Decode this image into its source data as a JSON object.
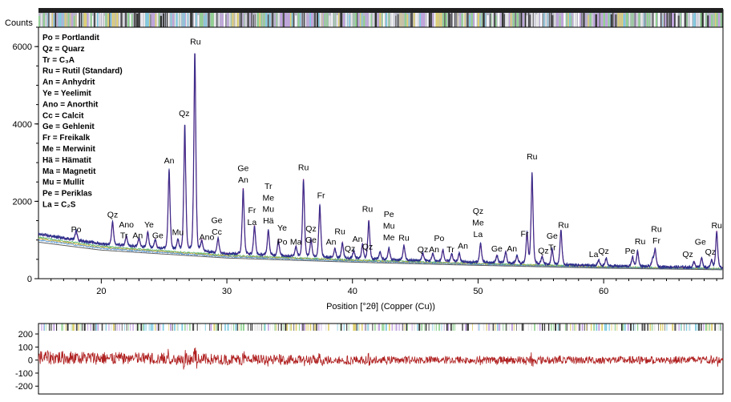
{
  "chart_data": [
    {
      "type": "line",
      "ylabel": "Counts",
      "xlabel": "Position [°2θ] (Copper (Cu))",
      "xlim": [
        15,
        69.5
      ],
      "ylim": [
        0,
        6500
      ],
      "x_ticks": [
        20,
        30,
        40,
        50,
        60
      ],
      "y_ticks": [
        0,
        2000,
        4000,
        6000
      ],
      "line_color": "#2a2f8a",
      "fit_color": "#7a2a8a",
      "legend_placement": "top-left",
      "legend": [
        "Po = Portlandit",
        "Qz = Quarz",
        "Tr = C₃A",
        "Ru = Rutil (Standard)",
        "An = Anhydrit",
        "Ye = Yeelimit",
        "Ano = Anorthit",
        "Cc = Calcit",
        "Ge = Gehlenit",
        "Fr = Freikalk",
        "Me = Merwinit",
        "Hä = Hämatit",
        "Ma = Magnetit",
        "Mu = Mullit",
        "Pe = Periklas",
        "La = C₂S"
      ],
      "baseline": {
        "x": [
          15,
          20,
          30,
          40,
          50,
          60,
          69.5
        ],
        "y": [
          1150,
          900,
          650,
          520,
          420,
          330,
          280
        ]
      },
      "peaks": [
        {
          "x": 18.0,
          "y": 250
        },
        {
          "x": 20.9,
          "y": 600
        },
        {
          "x": 22.0,
          "y": 250
        },
        {
          "x": 23.0,
          "y": 220
        },
        {
          "x": 23.7,
          "y": 400
        },
        {
          "x": 24.3,
          "y": 220
        },
        {
          "x": 25.4,
          "y": 2050
        },
        {
          "x": 26.1,
          "y": 250
        },
        {
          "x": 26.65,
          "y": 3250
        },
        {
          "x": 27.45,
          "y": 5150
        },
        {
          "x": 28.0,
          "y": 280
        },
        {
          "x": 29.3,
          "y": 380
        },
        {
          "x": 31.3,
          "y": 1700
        },
        {
          "x": 32.2,
          "y": 750
        },
        {
          "x": 33.3,
          "y": 650
        },
        {
          "x": 34.1,
          "y": 400
        },
        {
          "x": 35.5,
          "y": 250
        },
        {
          "x": 36.1,
          "y": 2000
        },
        {
          "x": 36.7,
          "y": 450
        },
        {
          "x": 37.4,
          "y": 1350
        },
        {
          "x": 38.6,
          "y": 250
        },
        {
          "x": 39.2,
          "y": 400
        },
        {
          "x": 40.1,
          "y": 200
        },
        {
          "x": 40.8,
          "y": 380
        },
        {
          "x": 41.3,
          "y": 1000
        },
        {
          "x": 42.2,
          "y": 200
        },
        {
          "x": 42.9,
          "y": 300
        },
        {
          "x": 44.1,
          "y": 380
        },
        {
          "x": 45.6,
          "y": 200
        },
        {
          "x": 46.4,
          "y": 200
        },
        {
          "x": 47.2,
          "y": 300
        },
        {
          "x": 47.9,
          "y": 200
        },
        {
          "x": 48.5,
          "y": 220
        },
        {
          "x": 50.2,
          "y": 500
        },
        {
          "x": 51.5,
          "y": 200
        },
        {
          "x": 52.2,
          "y": 300
        },
        {
          "x": 53.1,
          "y": 200
        },
        {
          "x": 53.9,
          "y": 800
        },
        {
          "x": 54.3,
          "y": 2350
        },
        {
          "x": 55.1,
          "y": 200
        },
        {
          "x": 55.9,
          "y": 400
        },
        {
          "x": 56.6,
          "y": 900
        },
        {
          "x": 59.6,
          "y": 150
        },
        {
          "x": 60.2,
          "y": 200
        },
        {
          "x": 62.3,
          "y": 250
        },
        {
          "x": 62.7,
          "y": 400
        },
        {
          "x": 63.9,
          "y": 200
        },
        {
          "x": 64.1,
          "y": 450
        },
        {
          "x": 67.2,
          "y": 150
        },
        {
          "x": 67.8,
          "y": 250
        },
        {
          "x": 68.6,
          "y": 200
        },
        {
          "x": 69.0,
          "y": 950
        }
      ],
      "peak_labels": [
        {
          "text": "Po",
          "x": 18.0,
          "y": 1200
        },
        {
          "text": "Qz",
          "x": 20.9,
          "y": 1580
        },
        {
          "text": "Ano",
          "x": 22.0,
          "y": 1330
        },
        {
          "text": "Tr",
          "x": 21.8,
          "y": 1050
        },
        {
          "text": "An",
          "x": 22.9,
          "y": 1050
        },
        {
          "text": "Ye",
          "x": 23.8,
          "y": 1330
        },
        {
          "text": "Ge",
          "x": 24.5,
          "y": 1050
        },
        {
          "text": "An",
          "x": 25.4,
          "y": 2980
        },
        {
          "text": "Mu",
          "x": 26.1,
          "y": 1130
        },
        {
          "text": "Qz",
          "x": 26.6,
          "y": 4200
        },
        {
          "text": "Ru",
          "x": 27.5,
          "y": 6050
        },
        {
          "text": "Ano",
          "x": 28.4,
          "y": 1000
        },
        {
          "text": "Ge",
          "x": 29.2,
          "y": 1440
        },
        {
          "text": "Cc",
          "x": 29.2,
          "y": 1140
        },
        {
          "text": "Ge",
          "x": 31.3,
          "y": 2780
        },
        {
          "text": "An",
          "x": 31.3,
          "y": 2480
        },
        {
          "text": "Fr",
          "x": 32.0,
          "y": 1700
        },
        {
          "text": "La",
          "x": 32.0,
          "y": 1390
        },
        {
          "text": "Tr",
          "x": 33.3,
          "y": 2320
        },
        {
          "text": "Me",
          "x": 33.3,
          "y": 2020
        },
        {
          "text": "Mu",
          "x": 33.3,
          "y": 1730
        },
        {
          "text": "Hä",
          "x": 33.3,
          "y": 1430
        },
        {
          "text": "Ye",
          "x": 34.4,
          "y": 1240
        },
        {
          "text": "Po",
          "x": 34.4,
          "y": 880
        },
        {
          "text": "Ma",
          "x": 35.5,
          "y": 880
        },
        {
          "text": "Ru",
          "x": 36.1,
          "y": 2800
        },
        {
          "text": "Qz",
          "x": 36.7,
          "y": 1220
        },
        {
          "text": "Ge",
          "x": 36.7,
          "y": 930
        },
        {
          "text": "Fr",
          "x": 37.5,
          "y": 2080
        },
        {
          "text": "An",
          "x": 38.3,
          "y": 880
        },
        {
          "text": "Ru",
          "x": 39.0,
          "y": 1150
        },
        {
          "text": "Qz",
          "x": 39.8,
          "y": 700
        },
        {
          "text": "An",
          "x": 40.4,
          "y": 950
        },
        {
          "text": "Ru",
          "x": 41.2,
          "y": 1730
        },
        {
          "text": "Qz",
          "x": 41.2,
          "y": 760
        },
        {
          "text": "Pe",
          "x": 42.9,
          "y": 1590
        },
        {
          "text": "Mu",
          "x": 42.9,
          "y": 1290
        },
        {
          "text": "Me",
          "x": 42.9,
          "y": 990
        },
        {
          "text": "Ru",
          "x": 44.1,
          "y": 980
        },
        {
          "text": "Qz",
          "x": 45.6,
          "y": 680
        },
        {
          "text": "An",
          "x": 46.5,
          "y": 680
        },
        {
          "text": "Po",
          "x": 46.9,
          "y": 970
        },
        {
          "text": "Tr",
          "x": 47.8,
          "y": 680
        },
        {
          "text": "An",
          "x": 48.8,
          "y": 780
        },
        {
          "text": "Qz",
          "x": 50.0,
          "y": 1680
        },
        {
          "text": "Me",
          "x": 50.0,
          "y": 1380
        },
        {
          "text": "La",
          "x": 50.0,
          "y": 1080
        },
        {
          "text": "Ge",
          "x": 51.5,
          "y": 700
        },
        {
          "text": "An",
          "x": 52.7,
          "y": 700
        },
        {
          "text": "Fr",
          "x": 53.7,
          "y": 1090
        },
        {
          "text": "Ru",
          "x": 54.3,
          "y": 3080
        },
        {
          "text": "Qz",
          "x": 55.2,
          "y": 650
        },
        {
          "text": "Ge",
          "x": 55.9,
          "y": 1040
        },
        {
          "text": "Tr",
          "x": 55.9,
          "y": 740
        },
        {
          "text": "Ru",
          "x": 56.8,
          "y": 1310
        },
        {
          "text": "La",
          "x": 59.2,
          "y": 560
        },
        {
          "text": "Qz",
          "x": 60.0,
          "y": 640
        },
        {
          "text": "Pe",
          "x": 62.1,
          "y": 640
        },
        {
          "text": "Ru",
          "x": 62.9,
          "y": 890
        },
        {
          "text": "Ru",
          "x": 64.2,
          "y": 1210
        },
        {
          "text": "Fr",
          "x": 64.2,
          "y": 910
        },
        {
          "text": "Qz",
          "x": 66.7,
          "y": 560
        },
        {
          "text": "Ge",
          "x": 67.7,
          "y": 880
        },
        {
          "text": "Qz",
          "x": 68.5,
          "y": 620
        },
        {
          "text": "Ru",
          "x": 69.0,
          "y": 1300
        }
      ]
    },
    {
      "type": "line",
      "xlim": [
        15,
        69.5
      ],
      "ylim": [
        -260,
        280
      ],
      "y_ticks": [
        200,
        100,
        0,
        -100,
        -200
      ],
      "line_color": "#b02020"
    }
  ]
}
